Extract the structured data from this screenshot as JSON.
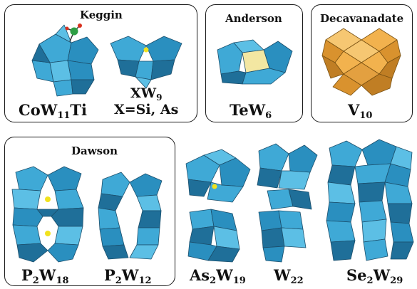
{
  "panels": {
    "keggin": {
      "title": "Keggin"
    },
    "anderson": {
      "title": "Anderson"
    },
    "decavanadate": {
      "title": "Decavanadate"
    },
    "dawson": {
      "title": "Dawson"
    }
  },
  "labels": {
    "co_w11_ti": {
      "main": "CoW",
      "sub": "11",
      "tail": "Ti"
    },
    "xw9": {
      "main": "XW",
      "sub": "9",
      "line2": "X=Si, As"
    },
    "tew6": {
      "main": "TeW",
      "sub": "6"
    },
    "v10": {
      "main": "V",
      "sub": "10"
    },
    "p2w18": {
      "a": "P",
      "a_sub": "2",
      "b": "W",
      "b_sub": "18"
    },
    "p2w12": {
      "a": "P",
      "a_sub": "2",
      "b": "W",
      "b_sub": "12"
    },
    "as2w19": {
      "a": "As",
      "a_sub": "2",
      "b": "W",
      "b_sub": "19"
    },
    "w22": {
      "main": "W",
      "sub": "22"
    },
    "se2w29": {
      "a": "Se",
      "a_sub": "2",
      "b": "W",
      "b_sub": "29"
    }
  },
  "colors": {
    "polyhedron_blue": "#3fa9d6",
    "polyhedron_dark": "#1f6f99",
    "decavanadate_orange": "#f2b24e",
    "anderson_center": "#f3e7a2",
    "heteroatom_yellow": "#f1e21d",
    "cobalt_green": "#2e9e44",
    "oxygen_red": "#d8301e"
  }
}
